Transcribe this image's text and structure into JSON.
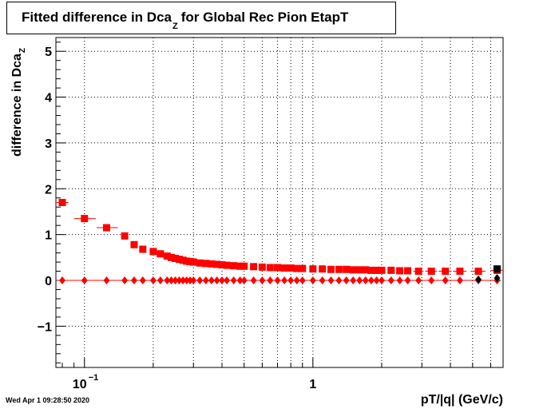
{
  "title": {
    "main": "Fitted difference in Dca",
    "sub": "Z",
    "rest": "for Global Rec Pion EtapT"
  },
  "footer": {
    "timestamp": "Wed Apr  1 09:28:50 2020"
  },
  "colors": {
    "series": "#ff0000",
    "black": "#000000",
    "grid": "#000000"
  },
  "chart_data": {
    "type": "scatter",
    "xlabel": "pT/|q| (GeV/c)",
    "ylabel": {
      "main": "difference in Dca",
      "sub": "Z"
    },
    "xscale": "log",
    "xlim": [
      0.075,
      6.8
    ],
    "ylim": [
      -1.9,
      5.3
    ],
    "xticklabels": [
      {
        "value": 0.1,
        "base": "10",
        "exp": "−1"
      },
      {
        "value": 1,
        "base": "1",
        "exp": ""
      }
    ],
    "yticks": [
      -1,
      0,
      1,
      2,
      3,
      4,
      5
    ],
    "yticklabels": [
      "−1",
      "0",
      "1",
      "2",
      "3",
      "4",
      "5"
    ],
    "grid": true,
    "legend": "none",
    "series": [
      {
        "marker": "square",
        "color": "#ff0000",
        "points": [
          {
            "x": 0.08,
            "y": 1.7,
            "xerr": [
              0.0755,
              0.085
            ]
          },
          {
            "x": 0.1,
            "y": 1.35,
            "xerr": [
              0.09,
              0.112
            ]
          },
          {
            "x": 0.125,
            "y": 1.15,
            "xerr": [
              0.113,
              0.14
            ]
          },
          {
            "x": 0.15,
            "y": 0.97
          },
          {
            "x": 0.165,
            "y": 0.78
          },
          {
            "x": 0.18,
            "y": 0.68
          },
          {
            "x": 0.2,
            "y": 0.63
          },
          {
            "x": 0.215,
            "y": 0.58
          },
          {
            "x": 0.23,
            "y": 0.53
          },
          {
            "x": 0.24,
            "y": 0.5
          },
          {
            "x": 0.25,
            "y": 0.48
          },
          {
            "x": 0.26,
            "y": 0.46
          },
          {
            "x": 0.27,
            "y": 0.44
          },
          {
            "x": 0.28,
            "y": 0.42
          },
          {
            "x": 0.29,
            "y": 0.41
          },
          {
            "x": 0.3,
            "y": 0.4
          },
          {
            "x": 0.32,
            "y": 0.38
          },
          {
            "x": 0.34,
            "y": 0.37
          },
          {
            "x": 0.36,
            "y": 0.36
          },
          {
            "x": 0.38,
            "y": 0.35
          },
          {
            "x": 0.4,
            "y": 0.34
          },
          {
            "x": 0.42,
            "y": 0.33
          },
          {
            "x": 0.45,
            "y": 0.32
          },
          {
            "x": 0.48,
            "y": 0.31
          },
          {
            "x": 0.5,
            "y": 0.31
          },
          {
            "x": 0.55,
            "y": 0.3
          },
          {
            "x": 0.6,
            "y": 0.29
          },
          {
            "x": 0.65,
            "y": 0.28
          },
          {
            "x": 0.7,
            "y": 0.28
          },
          {
            "x": 0.75,
            "y": 0.27
          },
          {
            "x": 0.8,
            "y": 0.27
          },
          {
            "x": 0.85,
            "y": 0.26
          },
          {
            "x": 0.9,
            "y": 0.26
          },
          {
            "x": 1.0,
            "y": 0.25
          },
          {
            "x": 1.1,
            "y": 0.25
          },
          {
            "x": 1.2,
            "y": 0.24
          },
          {
            "x": 1.3,
            "y": 0.24
          },
          {
            "x": 1.4,
            "y": 0.24
          },
          {
            "x": 1.5,
            "y": 0.23
          },
          {
            "x": 1.6,
            "y": 0.23
          },
          {
            "x": 1.7,
            "y": 0.23
          },
          {
            "x": 1.8,
            "y": 0.22
          },
          {
            "x": 1.9,
            "y": 0.22
          },
          {
            "x": 2.0,
            "y": 0.22
          },
          {
            "x": 2.2,
            "y": 0.22
          },
          {
            "x": 2.4,
            "y": 0.21
          },
          {
            "x": 2.6,
            "y": 0.21
          },
          {
            "x": 2.9,
            "y": 0.2,
            "xerr": [
              2.75,
              3.05
            ]
          },
          {
            "x": 3.3,
            "y": 0.2,
            "xerr": [
              3.1,
              3.5
            ]
          },
          {
            "x": 3.8,
            "y": 0.2,
            "xerr": [
              3.55,
              4.05
            ]
          },
          {
            "x": 4.4,
            "y": 0.2,
            "xerr": [
              4.1,
              4.7
            ]
          },
          {
            "x": 5.3,
            "y": 0.2,
            "xerr": [
              4.9,
              5.7
            ]
          },
          {
            "x": 6.4,
            "y": 0.22,
            "xerr": [
              6.0,
              6.8
            ]
          }
        ]
      },
      {
        "marker": "square",
        "color": "#000000",
        "points": [
          {
            "x": 6.4,
            "y": 0.25
          }
        ]
      },
      {
        "marker": "diamond",
        "color": "#ff0000",
        "points": [
          {
            "x": 0.08,
            "y": 0.0,
            "xerr": [
              0.0755,
              0.085
            ]
          },
          {
            "x": 0.1,
            "y": 0.0,
            "xerr": [
              0.09,
              0.112
            ]
          },
          {
            "x": 0.125,
            "y": 0.0,
            "xerr": [
              0.113,
              0.14
            ]
          },
          {
            "x": 0.15,
            "y": 0.0
          },
          {
            "x": 0.165,
            "y": 0.0
          },
          {
            "x": 0.18,
            "y": 0.0
          },
          {
            "x": 0.2,
            "y": 0.0
          },
          {
            "x": 0.215,
            "y": 0.0
          },
          {
            "x": 0.23,
            "y": 0.0
          },
          {
            "x": 0.24,
            "y": 0.0
          },
          {
            "x": 0.25,
            "y": 0.0
          },
          {
            "x": 0.26,
            "y": 0.0
          },
          {
            "x": 0.27,
            "y": 0.0
          },
          {
            "x": 0.28,
            "y": 0.0
          },
          {
            "x": 0.29,
            "y": 0.0
          },
          {
            "x": 0.3,
            "y": 0.0
          },
          {
            "x": 0.32,
            "y": 0.0
          },
          {
            "x": 0.34,
            "y": 0.0
          },
          {
            "x": 0.36,
            "y": 0.0
          },
          {
            "x": 0.38,
            "y": 0.0
          },
          {
            "x": 0.4,
            "y": 0.0
          },
          {
            "x": 0.42,
            "y": 0.0
          },
          {
            "x": 0.45,
            "y": 0.0
          },
          {
            "x": 0.48,
            "y": 0.0
          },
          {
            "x": 0.5,
            "y": 0.0
          },
          {
            "x": 0.55,
            "y": 0.0
          },
          {
            "x": 0.6,
            "y": 0.0
          },
          {
            "x": 0.65,
            "y": 0.0
          },
          {
            "x": 0.7,
            "y": 0.0
          },
          {
            "x": 0.75,
            "y": 0.0
          },
          {
            "x": 0.8,
            "y": 0.0
          },
          {
            "x": 0.85,
            "y": 0.0
          },
          {
            "x": 0.9,
            "y": 0.0
          },
          {
            "x": 1.0,
            "y": 0.0
          },
          {
            "x": 1.1,
            "y": 0.0
          },
          {
            "x": 1.2,
            "y": 0.0
          },
          {
            "x": 1.3,
            "y": 0.0
          },
          {
            "x": 1.4,
            "y": 0.0
          },
          {
            "x": 1.5,
            "y": 0.0
          },
          {
            "x": 1.6,
            "y": 0.0
          },
          {
            "x": 1.7,
            "y": 0.0
          },
          {
            "x": 1.8,
            "y": 0.0
          },
          {
            "x": 1.9,
            "y": 0.0
          },
          {
            "x": 2.0,
            "y": 0.0
          },
          {
            "x": 2.2,
            "y": 0.0
          },
          {
            "x": 2.4,
            "y": 0.0
          },
          {
            "x": 2.6,
            "y": 0.0
          },
          {
            "x": 2.9,
            "y": 0.0
          },
          {
            "x": 3.3,
            "y": 0.0
          },
          {
            "x": 3.8,
            "y": 0.0
          },
          {
            "x": 4.4,
            "y": 0.0
          },
          {
            "x": 5.3,
            "y": 0.0
          },
          {
            "x": 6.4,
            "y": 0.0
          }
        ]
      },
      {
        "marker": "diamond",
        "color": "#000000",
        "points": [
          {
            "x": 5.3,
            "y": 0.02
          },
          {
            "x": 6.4,
            "y": 0.05
          }
        ]
      }
    ]
  }
}
